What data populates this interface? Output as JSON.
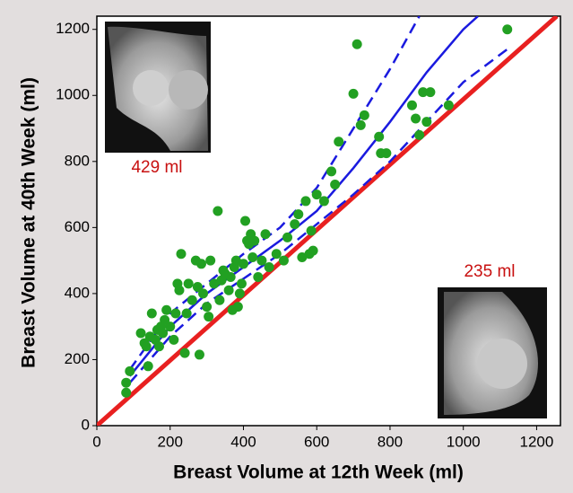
{
  "chart_data": {
    "type": "scatter",
    "x_label": "Breast Volume at 12th Week (ml)",
    "y_label": "Breast Volume at 40th Week (ml)",
    "xlim": [
      0,
      1265
    ],
    "ylim": [
      0,
      1240
    ],
    "xticks": [
      0,
      200,
      400,
      600,
      800,
      1000,
      1200
    ],
    "yticks": [
      0,
      200,
      400,
      600,
      800,
      1000,
      1200
    ],
    "annotations": [
      "429 ml",
      "235 ml"
    ],
    "series": [
      {
        "mode": "line",
        "color": "#e82020",
        "width": 5,
        "x": [
          0,
          1255
        ],
        "values": [
          0,
          1240
        ]
      },
      {
        "mode": "line",
        "color": "#1a1adf",
        "width": 2.5,
        "x": [
          90,
          200,
          300,
          400,
          500,
          600,
          700,
          800,
          900,
          1000,
          1040
        ],
        "values": [
          150,
          300,
          400,
          480,
          560,
          650,
          780,
          920,
          1070,
          1200,
          1240
        ]
      },
      {
        "mode": "line",
        "dash": true,
        "color": "#1a1adf",
        "width": 2.5,
        "x": [
          90,
          200,
          300,
          400,
          500,
          600,
          700,
          800,
          880
        ],
        "values": [
          170,
          340,
          430,
          520,
          600,
          720,
          900,
          1080,
          1240
        ]
      },
      {
        "mode": "line",
        "dash": true,
        "color": "#1a1adf",
        "width": 2.5,
        "x": [
          90,
          200,
          300,
          400,
          500,
          600,
          700,
          800,
          900,
          1000,
          1120
        ],
        "values": [
          130,
          270,
          370,
          445,
          520,
          610,
          700,
          800,
          920,
          1040,
          1140
        ]
      },
      {
        "mode": "markers",
        "color": "#22a022",
        "x": [
          80,
          80,
          90,
          120,
          130,
          135,
          140,
          145,
          150,
          160,
          165,
          170,
          175,
          180,
          185,
          190,
          200,
          210,
          215,
          220,
          225,
          230,
          240,
          245,
          250,
          260,
          270,
          275,
          280,
          285,
          290,
          300,
          305,
          310,
          320,
          330,
          335,
          340,
          345,
          350,
          360,
          365,
          370,
          375,
          380,
          385,
          390,
          395,
          400,
          405,
          410,
          415,
          420,
          425,
          430,
          440,
          450,
          460,
          470,
          490,
          510,
          520,
          540,
          550,
          560,
          570,
          580,
          585,
          590,
          600,
          620,
          640,
          650,
          660,
          700,
          710,
          720,
          730,
          770,
          775,
          790,
          860,
          870,
          880,
          890,
          900,
          910,
          960,
          1120
        ],
        "values": [
          100,
          130,
          165,
          280,
          250,
          240,
          180,
          270,
          340,
          260,
          290,
          240,
          300,
          280,
          320,
          350,
          300,
          260,
          340,
          430,
          410,
          520,
          220,
          340,
          430,
          380,
          500,
          420,
          215,
          490,
          400,
          360,
          330,
          500,
          430,
          650,
          380,
          440,
          470,
          460,
          410,
          450,
          350,
          480,
          500,
          360,
          400,
          430,
          490,
          620,
          560,
          550,
          580,
          510,
          560,
          450,
          500,
          580,
          480,
          520,
          500,
          570,
          610,
          640,
          510,
          680,
          520,
          590,
          530,
          700,
          680,
          770,
          730,
          860,
          1005,
          1155,
          910,
          940,
          875,
          825,
          825,
          970,
          930,
          880,
          1010,
          920,
          1010,
          970,
          1200
        ]
      }
    ]
  }
}
